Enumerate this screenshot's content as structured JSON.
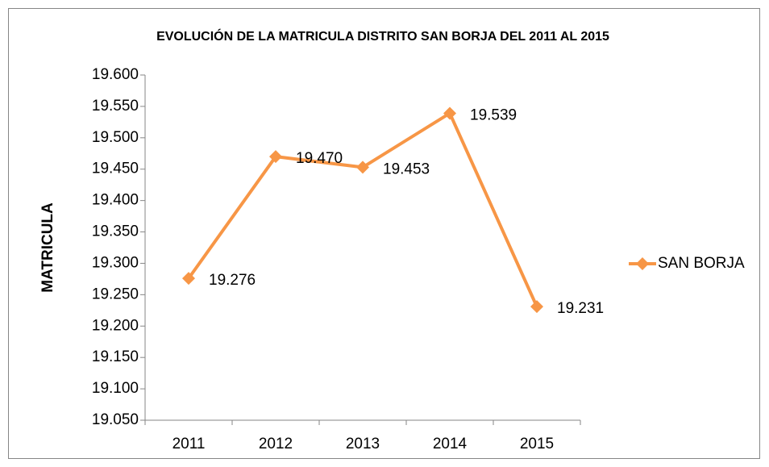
{
  "chart_data": {
    "type": "line",
    "title": "EVOLUCIÓN DE LA MATRICULA DISTRITO SAN BORJA DEL 2011 AL 2015",
    "y_label": "MATRICULA",
    "categories": [
      "2011",
      "2012",
      "2013",
      "2014",
      "2015"
    ],
    "series": [
      {
        "name": "SAN BORJA",
        "color": "#f79646",
        "values": [
          19276,
          19470,
          19453,
          19539,
          19231
        ],
        "value_labels": [
          "19.276",
          "19.470",
          "19.453",
          "19.539",
          "19.231"
        ]
      }
    ],
    "ylim": [
      19050,
      19600
    ],
    "yticks": [
      {
        "value": 19050,
        "label": "19.050"
      },
      {
        "value": 19100,
        "label": "19.100"
      },
      {
        "value": 19150,
        "label": "19.150"
      },
      {
        "value": 19200,
        "label": "19.200"
      },
      {
        "value": 19250,
        "label": "19.250"
      },
      {
        "value": 19300,
        "label": "19.300"
      },
      {
        "value": 19350,
        "label": "19.350"
      },
      {
        "value": 19400,
        "label": "19.400"
      },
      {
        "value": 19450,
        "label": "19.450"
      },
      {
        "value": 19500,
        "label": "19.500"
      },
      {
        "value": 19550,
        "label": "19.550"
      },
      {
        "value": 19600,
        "label": "19.600"
      }
    ],
    "grid": false,
    "legend": "right"
  }
}
